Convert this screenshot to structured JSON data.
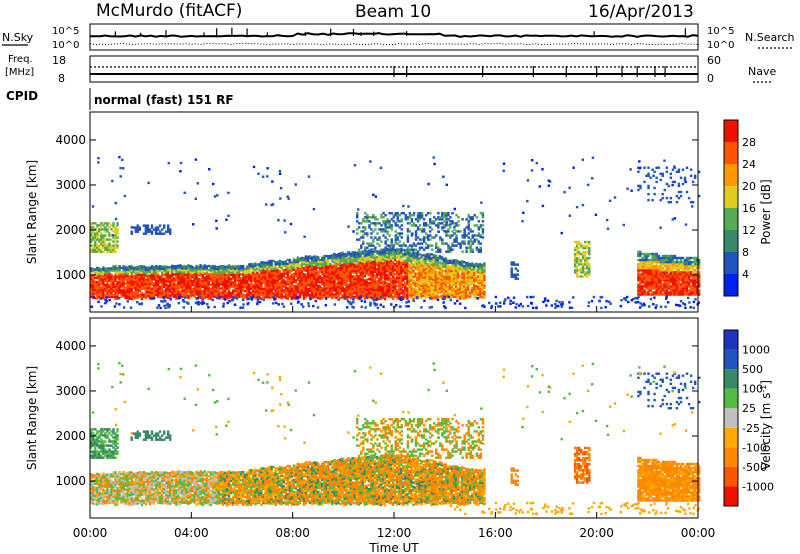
{
  "header": {
    "station": "McMurdo (fitACF)",
    "beam": "Beam 10",
    "date": "16/Apr/2013"
  },
  "top_strip": {
    "left_label": "N.Sky",
    "left_ticks": [
      "10^5",
      "10^0"
    ],
    "right_ticks": [
      "10^5",
      "10^0"
    ],
    "right_label": "N.Search"
  },
  "freq_strip": {
    "label_line1": "Freq.",
    "label_line2": "[MHz]",
    "left_ticks": [
      "18",
      "8"
    ],
    "right_ticks": [
      "60",
      "0"
    ],
    "right_label": "Nave",
    "cpid_label": "CPID",
    "mode_text": "normal (fast) 151 RF"
  },
  "colors": {
    "power_scale": [
      "#0022ee",
      "#2255bb",
      "#3a8a6a",
      "#55aa55",
      "#ddcc22",
      "#ff9900",
      "#ff5500",
      "#ee1100"
    ],
    "velocity_scale": [
      "#ee1100",
      "#ff5500",
      "#ff8800",
      "#ffaa00",
      "#c0c0c0",
      "#55bb44",
      "#3a8a6a",
      "#2255bb",
      "#2233bb"
    ]
  },
  "chart_data": [
    {
      "type": "heatmap",
      "panel": "power",
      "ylabel": "Slant Range [km]",
      "yticks": [
        "1000",
        "2000",
        "3000",
        "4000"
      ],
      "ylim": [
        180,
        4620
      ],
      "xlim": [
        0,
        24
      ],
      "colorbar_label": "Power [dB]",
      "colorbar_ticks": [
        "4",
        "8",
        "12",
        "16",
        "20",
        "24",
        "28"
      ],
      "colorbar_range": [
        0,
        32
      ],
      "series": [
        {
          "x": [
            0,
            0.5,
            1,
            1.5,
            2,
            2.5,
            3,
            3.5,
            4,
            4.5,
            5,
            5.5,
            6,
            6.5,
            7,
            7.5,
            8,
            8.5,
            9,
            9.5,
            10,
            10.5,
            11,
            11.5,
            12,
            12.5,
            13,
            13.5,
            14,
            14.5,
            15,
            15.5
          ],
          "y": [
            1150,
            1150,
            1180,
            1180,
            1180,
            1180,
            1200,
            1200,
            1200,
            1200,
            1200,
            1200,
            1200,
            1250,
            1300,
            1300,
            1350,
            1400,
            1400,
            1450,
            1500,
            1500,
            1550,
            1550,
            1600,
            1550,
            1450,
            1450,
            1350,
            1300,
            1250,
            1250
          ]
        }
      ]
    },
    {
      "type": "heatmap",
      "panel": "velocity",
      "ylabel": "Slant Range [km]",
      "yticks": [
        "1000",
        "2000",
        "3000",
        "4000"
      ],
      "ylim": [
        180,
        4620
      ],
      "xlim": [
        0,
        24
      ],
      "xticks": [
        "00:00",
        "04:00",
        "08:00",
        "12:00",
        "16:00",
        "20:00",
        "00:00"
      ],
      "xlabel": "Time UT",
      "colorbar_label": "Velocity [m s^-1]",
      "colorbar_ticks": [
        "-1000",
        "-500",
        "-100",
        "-25",
        "25",
        "100",
        "500",
        "1000"
      ],
      "colorbar_range": [
        -1000,
        1000
      ]
    }
  ]
}
